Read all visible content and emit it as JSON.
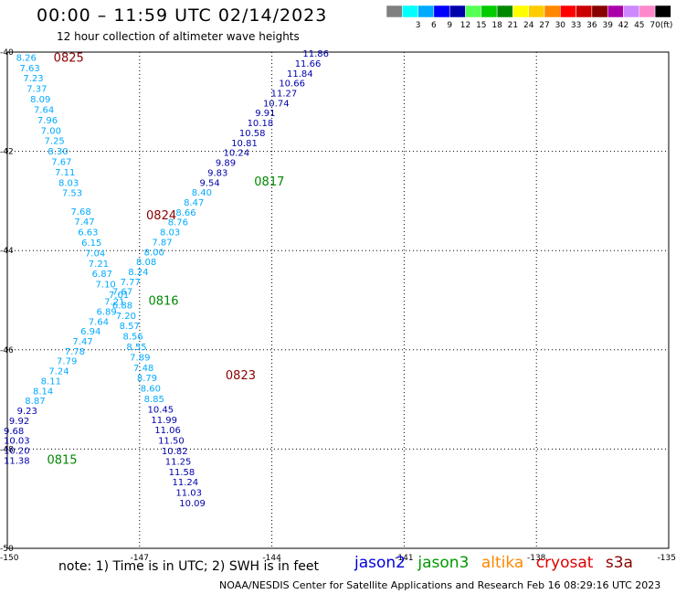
{
  "header": {
    "title": "00:00 – 11:59 UTC 02/14/2023",
    "subtitle": "12 hour collection of altimeter wave heights"
  },
  "footer": {
    "note": "note:  1) Time is in UTC; 2) SWH is in feet",
    "credit": "NOAA/NESDIS Center for Satellite Applications and Research    Feb 16 08:29:16 UTC 2023"
  },
  "satellites": [
    {
      "name": "jason2",
      "color": "#0000dd"
    },
    {
      "name": "jason3",
      "color": "#009900"
    },
    {
      "name": "altika",
      "color": "#ff8800"
    },
    {
      "name": "cryosat",
      "color": "#dd0000"
    },
    {
      "name": "s3a",
      "color": "#8b0000"
    }
  ],
  "chart_data": {
    "type": "scatter",
    "xlim": [
      -150,
      -135
    ],
    "ylim": [
      -50,
      -40
    ],
    "x_ticks": [
      -150,
      -147,
      -144,
      -141,
      -138,
      -135
    ],
    "y_ticks": [
      -40,
      -42,
      -44,
      -46,
      -48,
      -50
    ],
    "x_tick_labels": [
      "-150",
      "-147",
      "-144",
      "-141",
      "-138",
      "-135"
    ],
    "y_tick_labels": [
      "-40",
      "-42",
      "-44",
      "-46",
      "-48",
      "-50"
    ],
    "grid": true,
    "units": "(ft)",
    "color_scale": [
      {
        "label": "",
        "color": "#808080"
      },
      {
        "label": "3",
        "color": "#00ffff"
      },
      {
        "label": "6",
        "color": "#00aaff"
      },
      {
        "label": "9",
        "color": "#0000ff"
      },
      {
        "label": "12",
        "color": "#0000aa"
      },
      {
        "label": "15",
        "color": "#55ff55"
      },
      {
        "label": "18",
        "color": "#00cc00"
      },
      {
        "label": "21",
        "color": "#008800"
      },
      {
        "label": "24",
        "color": "#ffff00"
      },
      {
        "label": "27",
        "color": "#ffcc00"
      },
      {
        "label": "30",
        "color": "#ff8800"
      },
      {
        "label": "33",
        "color": "#ff0000"
      },
      {
        "label": "36",
        "color": "#cc0000"
      },
      {
        "label": "39",
        "color": "#880000"
      },
      {
        "label": "42",
        "color": "#aa00aa"
      },
      {
        "label": "45",
        "color": "#cc88ff"
      },
      {
        "label": "70",
        "color": "#ff88cc"
      },
      {
        "label": "",
        "color": "#000000"
      }
    ],
    "tracks": [
      {
        "id": "track-a",
        "satellite": "jason2",
        "color": "#00aaff",
        "points": [
          {
            "lon": -149.8,
            "lat": -40.1,
            "v": "8.26"
          },
          {
            "lon": -149.72,
            "lat": -40.31,
            "v": "7.63"
          },
          {
            "lon": -149.64,
            "lat": -40.52,
            "v": "7.23"
          },
          {
            "lon": -149.56,
            "lat": -40.73,
            "v": "7.37"
          },
          {
            "lon": -149.48,
            "lat": -40.94,
            "v": "8.09"
          },
          {
            "lon": -149.4,
            "lat": -41.15,
            "v": "7.64"
          },
          {
            "lon": -149.32,
            "lat": -41.36,
            "v": "7.96"
          },
          {
            "lon": -149.24,
            "lat": -41.57,
            "v": "7.00"
          },
          {
            "lon": -149.16,
            "lat": -41.78,
            "v": "7.25"
          },
          {
            "lon": -149.08,
            "lat": -41.99,
            "v": "8.30"
          },
          {
            "lon": -149.0,
            "lat": -42.2,
            "v": "7.67"
          },
          {
            "lon": -148.92,
            "lat": -42.41,
            "v": "7.11"
          },
          {
            "lon": -148.84,
            "lat": -42.62,
            "v": "8.03"
          },
          {
            "lon": -148.76,
            "lat": -42.83,
            "v": "7.53"
          },
          {
            "lon": -148.56,
            "lat": -43.2,
            "v": "7.68"
          },
          {
            "lon": -148.48,
            "lat": -43.41,
            "v": "7.47"
          },
          {
            "lon": -148.4,
            "lat": -43.62,
            "v": "6.63"
          },
          {
            "lon": -148.32,
            "lat": -43.83,
            "v": "6.15"
          },
          {
            "lon": -148.24,
            "lat": -44.04,
            "v": "7.04"
          },
          {
            "lon": -148.16,
            "lat": -44.25,
            "v": "7.21"
          },
          {
            "lon": -148.08,
            "lat": -44.46,
            "v": "6.87"
          },
          {
            "lon": -148.0,
            "lat": -44.67,
            "v": "7.10"
          },
          {
            "lon": -147.7,
            "lat": -44.88,
            "v": "7.01"
          },
          {
            "lon": -147.62,
            "lat": -45.09,
            "v": "6.88"
          },
          {
            "lon": -147.54,
            "lat": -45.3,
            "v": "7.20"
          },
          {
            "lon": -147.46,
            "lat": -45.51,
            "v": "8.57"
          },
          {
            "lon": -147.38,
            "lat": -45.72,
            "v": "8.56"
          },
          {
            "lon": -147.3,
            "lat": -45.93,
            "v": "8.55"
          },
          {
            "lon": -147.22,
            "lat": -46.14,
            "v": "7.89"
          },
          {
            "lon": -147.14,
            "lat": -46.35,
            "v": "7.48"
          },
          {
            "lon": -147.06,
            "lat": -46.56,
            "v": "8.79"
          },
          {
            "lon": -146.98,
            "lat": -46.77,
            "v": "8.60"
          },
          {
            "lon": -146.9,
            "lat": -46.98,
            "v": "8.85"
          }
        ]
      },
      {
        "id": "track-b",
        "satellite": "jason2",
        "color": "#0000aa",
        "points": [
          {
            "lon": -146.82,
            "lat": -47.19,
            "v": "10.45"
          },
          {
            "lon": -146.74,
            "lat": -47.4,
            "v": "11.99"
          },
          {
            "lon": -146.66,
            "lat": -47.61,
            "v": "11.06"
          },
          {
            "lon": -146.58,
            "lat": -47.82,
            "v": "11.50"
          },
          {
            "lon": -146.5,
            "lat": -48.03,
            "v": "10.82"
          },
          {
            "lon": -146.42,
            "lat": -48.24,
            "v": "11.25"
          },
          {
            "lon": -146.34,
            "lat": -48.45,
            "v": "11.58"
          },
          {
            "lon": -146.26,
            "lat": -48.66,
            "v": "11.24"
          },
          {
            "lon": -146.18,
            "lat": -48.87,
            "v": "11.03"
          },
          {
            "lon": -146.1,
            "lat": -49.08,
            "v": "10.09"
          }
        ]
      },
      {
        "id": "track-c",
        "satellite": "jason3",
        "color": "#0000aa",
        "points": [
          {
            "lon": -143.3,
            "lat": -40.02,
            "v": "11.86"
          },
          {
            "lon": -143.48,
            "lat": -40.22,
            "v": "11.66"
          },
          {
            "lon": -143.66,
            "lat": -40.42,
            "v": "11.84"
          },
          {
            "lon": -143.84,
            "lat": -40.62,
            "v": "10.66"
          },
          {
            "lon": -144.02,
            "lat": -40.82,
            "v": "11.27"
          },
          {
            "lon": -144.2,
            "lat": -41.02,
            "v": "10.74"
          },
          {
            "lon": -144.38,
            "lat": -41.22,
            "v": "9.91"
          },
          {
            "lon": -144.56,
            "lat": -41.42,
            "v": "10.18"
          },
          {
            "lon": -144.74,
            "lat": -41.62,
            "v": "10.58"
          },
          {
            "lon": -144.92,
            "lat": -41.82,
            "v": "10.81"
          },
          {
            "lon": -145.1,
            "lat": -42.02,
            "v": "10.24"
          },
          {
            "lon": -145.28,
            "lat": -42.22,
            "v": "9.89"
          },
          {
            "lon": -145.46,
            "lat": -42.42,
            "v": "9.83"
          },
          {
            "lon": -145.64,
            "lat": -42.62,
            "v": "9.54"
          }
        ]
      },
      {
        "id": "track-d",
        "satellite": "jason3",
        "color": "#00aaff",
        "points": [
          {
            "lon": -145.82,
            "lat": -42.82,
            "v": "8.40"
          },
          {
            "lon": -146.0,
            "lat": -43.02,
            "v": "8.47"
          },
          {
            "lon": -146.18,
            "lat": -43.22,
            "v": "8.66"
          },
          {
            "lon": -146.36,
            "lat": -43.42,
            "v": "8.76"
          },
          {
            "lon": -146.54,
            "lat": -43.62,
            "v": "8.03"
          },
          {
            "lon": -146.72,
            "lat": -43.82,
            "v": "7.87"
          },
          {
            "lon": -146.9,
            "lat": -44.02,
            "v": "8.00"
          },
          {
            "lon": -147.08,
            "lat": -44.22,
            "v": "8.08"
          },
          {
            "lon": -147.26,
            "lat": -44.42,
            "v": "8.24"
          },
          {
            "lon": -147.44,
            "lat": -44.62,
            "v": "7.77"
          },
          {
            "lon": -147.62,
            "lat": -44.82,
            "v": "7.67"
          },
          {
            "lon": -147.8,
            "lat": -45.02,
            "v": "7.21"
          },
          {
            "lon": -147.98,
            "lat": -45.22,
            "v": "6.89"
          },
          {
            "lon": -148.16,
            "lat": -45.42,
            "v": "7.64"
          },
          {
            "lon": -148.34,
            "lat": -45.62,
            "v": "6.94"
          },
          {
            "lon": -148.52,
            "lat": -45.82,
            "v": "7.47"
          },
          {
            "lon": -148.7,
            "lat": -46.02,
            "v": "7.78"
          },
          {
            "lon": -148.88,
            "lat": -46.22,
            "v": "7.79"
          },
          {
            "lon": -149.06,
            "lat": -46.42,
            "v": "7.24"
          },
          {
            "lon": -149.24,
            "lat": -46.62,
            "v": "8.11"
          },
          {
            "lon": -149.42,
            "lat": -46.82,
            "v": "8.14"
          },
          {
            "lon": -149.6,
            "lat": -47.02,
            "v": "8.87"
          }
        ]
      },
      {
        "id": "track-e",
        "satellite": "jason3",
        "color": "#0000aa",
        "points": [
          {
            "lon": -149.78,
            "lat": -47.22,
            "v": "9.23"
          },
          {
            "lon": -149.96,
            "lat": -47.42,
            "v": "9.92"
          },
          {
            "lon": -150.14,
            "lat": -47.62,
            "v": "9.68"
          },
          {
            "lon": -150.32,
            "lat": -47.82,
            "v": "10.03"
          },
          {
            "lon": -150.5,
            "lat": -48.02,
            "v": "10.20"
          },
          {
            "lon": -150.68,
            "lat": -48.22,
            "v": "11.38"
          }
        ]
      }
    ],
    "time_labels": [
      {
        "text": "0825",
        "color": "#8b0000",
        "lon": -148.95,
        "lat": -40.1
      },
      {
        "text": "0817",
        "color": "#008800",
        "lon": -144.4,
        "lat": -42.6
      },
      {
        "text": "0824",
        "color": "#8b0000",
        "lon": -146.85,
        "lat": -43.28
      },
      {
        "text": "0816",
        "color": "#008800",
        "lon": -146.8,
        "lat": -45.0
      },
      {
        "text": "0823",
        "color": "#8b0000",
        "lon": -145.05,
        "lat": -46.5
      },
      {
        "text": "0815",
        "color": "#008800",
        "lon": -149.1,
        "lat": -48.2
      }
    ]
  }
}
